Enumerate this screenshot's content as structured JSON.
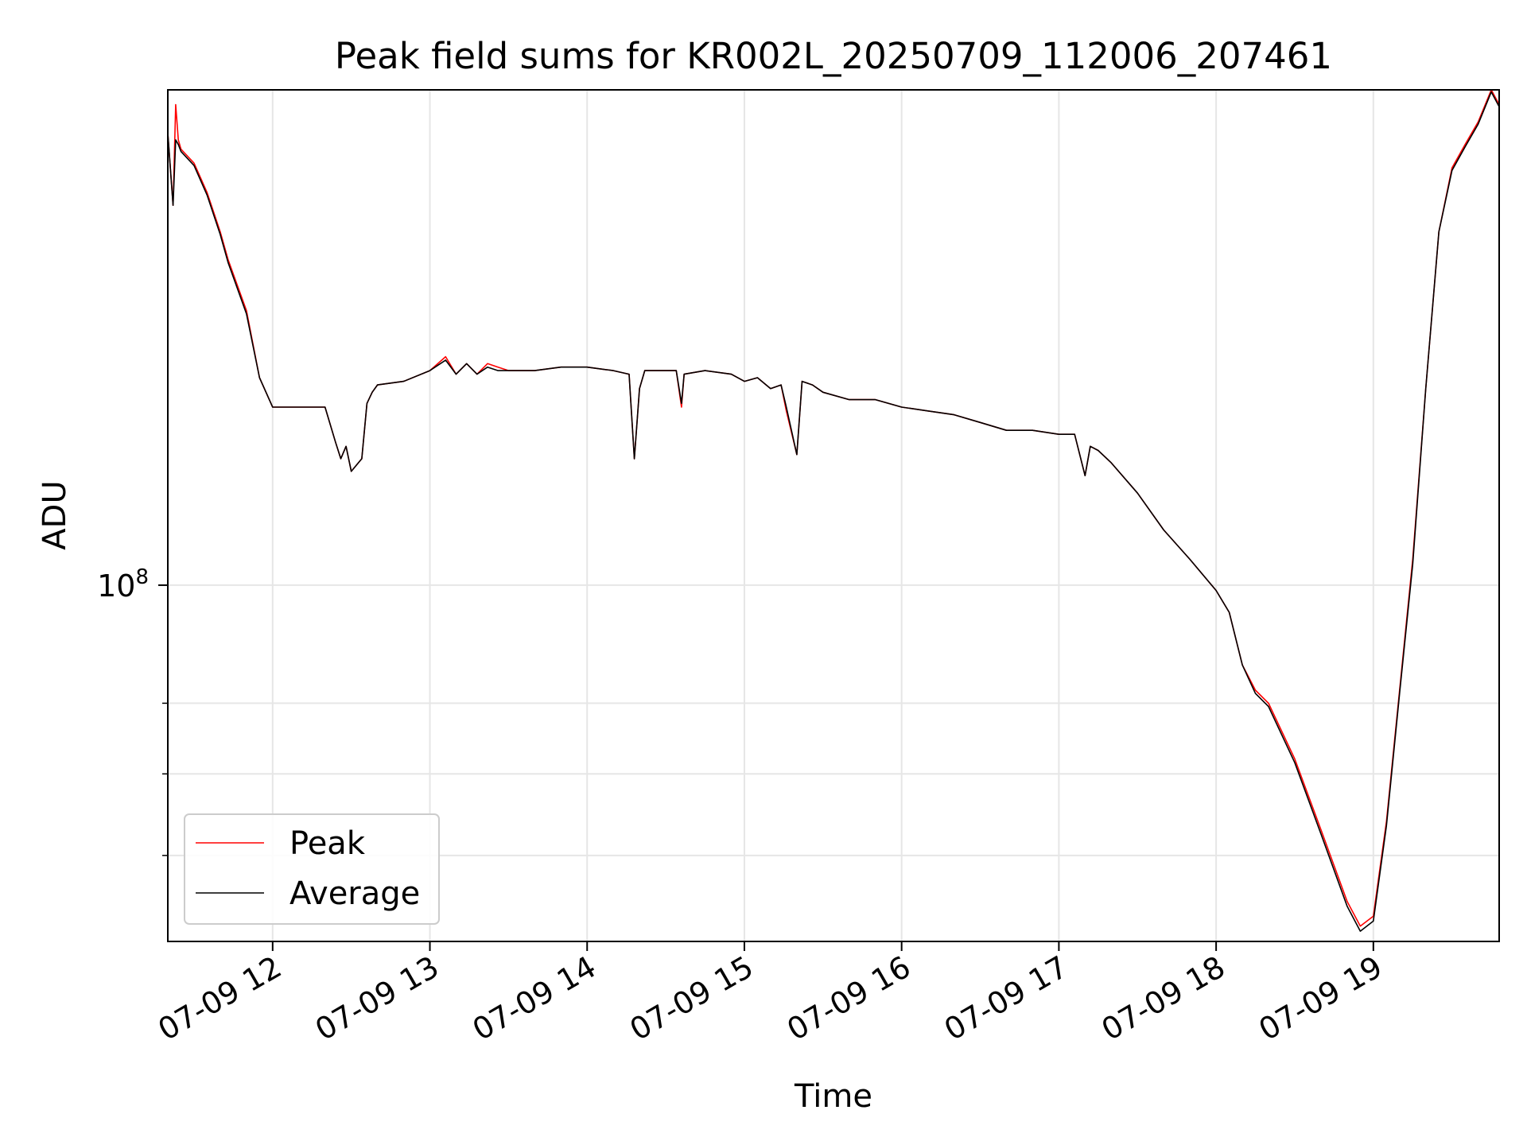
{
  "chart_data": {
    "type": "line",
    "title": "Peak field sums for KR002L_20250709_112006_207461",
    "xlabel": "Time",
    "ylabel": "ADU",
    "y_scale": "log",
    "grid": true,
    "legend_position": "lower-left",
    "xlim": [
      "2025-07-09 11:20",
      "2025-07-09 19:48"
    ],
    "ylim": [
      51000000,
      255000000
    ],
    "x_ticks": [
      {
        "value": "2025-07-09 12:00",
        "label": "07-09 12"
      },
      {
        "value": "2025-07-09 13:00",
        "label": "07-09 13"
      },
      {
        "value": "2025-07-09 14:00",
        "label": "07-09 14"
      },
      {
        "value": "2025-07-09 15:00",
        "label": "07-09 15"
      },
      {
        "value": "2025-07-09 16:00",
        "label": "07-09 16"
      },
      {
        "value": "2025-07-09 17:00",
        "label": "07-09 17"
      },
      {
        "value": "2025-07-09 18:00",
        "label": "07-09 18"
      },
      {
        "value": "2025-07-09 19:00",
        "label": "07-09 19"
      }
    ],
    "y_ticks": [
      {
        "value": 100000000,
        "base": "10",
        "exp": "8"
      }
    ],
    "y_minor_ticks": [
      60000000,
      70000000,
      80000000
    ],
    "series": [
      {
        "name": "Peak",
        "color": "#ff0000",
        "x": [
          "2025-07-09 11:20",
          "2025-07-09 11:22",
          "2025-07-09 11:23",
          "2025-07-09 11:24",
          "2025-07-09 11:25",
          "2025-07-09 11:30",
          "2025-07-09 11:35",
          "2025-07-09 11:40",
          "2025-07-09 11:43",
          "2025-07-09 11:50",
          "2025-07-09 11:55",
          "2025-07-09 12:00",
          "2025-07-09 12:10",
          "2025-07-09 12:20",
          "2025-07-09 12:24",
          "2025-07-09 12:26",
          "2025-07-09 12:28",
          "2025-07-09 12:30",
          "2025-07-09 12:34",
          "2025-07-09 12:36",
          "2025-07-09 12:38",
          "2025-07-09 12:40",
          "2025-07-09 12:50",
          "2025-07-09 13:00",
          "2025-07-09 13:06",
          "2025-07-09 13:10",
          "2025-07-09 13:14",
          "2025-07-09 13:18",
          "2025-07-09 13:22",
          "2025-07-09 13:26",
          "2025-07-09 13:30",
          "2025-07-09 13:40",
          "2025-07-09 13:50",
          "2025-07-09 14:00",
          "2025-07-09 14:10",
          "2025-07-09 14:16",
          "2025-07-09 14:18",
          "2025-07-09 14:20",
          "2025-07-09 14:22",
          "2025-07-09 14:24",
          "2025-07-09 14:34",
          "2025-07-09 14:36",
          "2025-07-09 14:37",
          "2025-07-09 14:45",
          "2025-07-09 14:55",
          "2025-07-09 15:00",
          "2025-07-09 15:05",
          "2025-07-09 15:10",
          "2025-07-09 15:14",
          "2025-07-09 15:16",
          "2025-07-09 15:20",
          "2025-07-09 15:22",
          "2025-07-09 15:26",
          "2025-07-09 15:30",
          "2025-07-09 15:40",
          "2025-07-09 15:50",
          "2025-07-09 16:00",
          "2025-07-09 16:10",
          "2025-07-09 16:20",
          "2025-07-09 16:30",
          "2025-07-09 16:40",
          "2025-07-09 16:50",
          "2025-07-09 17:00",
          "2025-07-09 17:06",
          "2025-07-09 17:10",
          "2025-07-09 17:12",
          "2025-07-09 17:15",
          "2025-07-09 17:20",
          "2025-07-09 17:30",
          "2025-07-09 17:40",
          "2025-07-09 17:50",
          "2025-07-09 18:00",
          "2025-07-09 18:05",
          "2025-07-09 18:10",
          "2025-07-09 18:15",
          "2025-07-09 18:20",
          "2025-07-09 18:30",
          "2025-07-09 18:40",
          "2025-07-09 18:50",
          "2025-07-09 18:55",
          "2025-07-09 19:00",
          "2025-07-09 19:05",
          "2025-07-09 19:10",
          "2025-07-09 19:15",
          "2025-07-09 19:20",
          "2025-07-09 19:25",
          "2025-07-09 19:30",
          "2025-07-09 19:35",
          "2025-07-09 19:40",
          "2025-07-09 19:45",
          "2025-07-09 19:48"
        ],
        "y": [
          235000000,
          205000000,
          248000000,
          232000000,
          228000000,
          222000000,
          210000000,
          195000000,
          185000000,
          168000000,
          148000000,
          140000000,
          140000000,
          140000000,
          131000000,
          127000000,
          130000000,
          124000000,
          127000000,
          141000000,
          144000000,
          146000000,
          147000000,
          150000000,
          154000000,
          149000000,
          152000000,
          149000000,
          152000000,
          151000000,
          150000000,
          150000000,
          151000000,
          151000000,
          150000000,
          149000000,
          127000000,
          145000000,
          150000000,
          150000000,
          150000000,
          140000000,
          149000000,
          150000000,
          149000000,
          147000000,
          148000000,
          145000000,
          146000000,
          139000000,
          128000000,
          147000000,
          146000000,
          144000000,
          142000000,
          142000000,
          140000000,
          139000000,
          138000000,
          136000000,
          134000000,
          134000000,
          133000000,
          133000000,
          123000000,
          130000000,
          129000000,
          126000000,
          119000000,
          111000000,
          105000000,
          99000000,
          95000000,
          86000000,
          82000000,
          80000000,
          72000000,
          63000000,
          55000000,
          52500000,
          53500000,
          64000000,
          82000000,
          105000000,
          145000000,
          195000000,
          220000000,
          230000000,
          240000000,
          255000000,
          248000000
        ]
      },
      {
        "name": "Average",
        "color": "#000000",
        "x": [
          "2025-07-09 11:20",
          "2025-07-09 11:22",
          "2025-07-09 11:23",
          "2025-07-09 11:24",
          "2025-07-09 11:25",
          "2025-07-09 11:30",
          "2025-07-09 11:35",
          "2025-07-09 11:40",
          "2025-07-09 11:43",
          "2025-07-09 11:50",
          "2025-07-09 11:55",
          "2025-07-09 12:00",
          "2025-07-09 12:10",
          "2025-07-09 12:20",
          "2025-07-09 12:24",
          "2025-07-09 12:26",
          "2025-07-09 12:28",
          "2025-07-09 12:30",
          "2025-07-09 12:34",
          "2025-07-09 12:36",
          "2025-07-09 12:38",
          "2025-07-09 12:40",
          "2025-07-09 12:50",
          "2025-07-09 13:00",
          "2025-07-09 13:06",
          "2025-07-09 13:10",
          "2025-07-09 13:14",
          "2025-07-09 13:18",
          "2025-07-09 13:22",
          "2025-07-09 13:26",
          "2025-07-09 13:30",
          "2025-07-09 13:40",
          "2025-07-09 13:50",
          "2025-07-09 14:00",
          "2025-07-09 14:10",
          "2025-07-09 14:16",
          "2025-07-09 14:18",
          "2025-07-09 14:20",
          "2025-07-09 14:22",
          "2025-07-09 14:24",
          "2025-07-09 14:34",
          "2025-07-09 14:36",
          "2025-07-09 14:37",
          "2025-07-09 14:45",
          "2025-07-09 14:55",
          "2025-07-09 15:00",
          "2025-07-09 15:05",
          "2025-07-09 15:10",
          "2025-07-09 15:14",
          "2025-07-09 15:16",
          "2025-07-09 15:20",
          "2025-07-09 15:22",
          "2025-07-09 15:26",
          "2025-07-09 15:30",
          "2025-07-09 15:40",
          "2025-07-09 15:50",
          "2025-07-09 16:00",
          "2025-07-09 16:10",
          "2025-07-09 16:20",
          "2025-07-09 16:30",
          "2025-07-09 16:40",
          "2025-07-09 16:50",
          "2025-07-09 17:00",
          "2025-07-09 17:06",
          "2025-07-09 17:10",
          "2025-07-09 17:12",
          "2025-07-09 17:15",
          "2025-07-09 17:20",
          "2025-07-09 17:30",
          "2025-07-09 17:40",
          "2025-07-09 17:50",
          "2025-07-09 18:00",
          "2025-07-09 18:05",
          "2025-07-09 18:10",
          "2025-07-09 18:15",
          "2025-07-09 18:20",
          "2025-07-09 18:30",
          "2025-07-09 18:40",
          "2025-07-09 18:50",
          "2025-07-09 18:55",
          "2025-07-09 19:00",
          "2025-07-09 19:05",
          "2025-07-09 19:10",
          "2025-07-09 19:15",
          "2025-07-09 19:20",
          "2025-07-09 19:25",
          "2025-07-09 19:30",
          "2025-07-09 19:35",
          "2025-07-09 19:40",
          "2025-07-09 19:45",
          "2025-07-09 19:48"
        ],
        "y": [
          235000000,
          205000000,
          232000000,
          230000000,
          227000000,
          221000000,
          209000000,
          194000000,
          184000000,
          167000000,
          148000000,
          140000000,
          140000000,
          140000000,
          131000000,
          127000000,
          130000000,
          124000000,
          127000000,
          141000000,
          144000000,
          146000000,
          147000000,
          150000000,
          153000000,
          149000000,
          152000000,
          149000000,
          151000000,
          150000000,
          150000000,
          150000000,
          151000000,
          151000000,
          150000000,
          149000000,
          127000000,
          145000000,
          150000000,
          150000000,
          150000000,
          141000000,
          149000000,
          150000000,
          149000000,
          147000000,
          148000000,
          145000000,
          146000000,
          140000000,
          128000000,
          147000000,
          146000000,
          144000000,
          142000000,
          142000000,
          140000000,
          139000000,
          138000000,
          136000000,
          134000000,
          134000000,
          133000000,
          133000000,
          123000000,
          130000000,
          129000000,
          126000000,
          119000000,
          111000000,
          105000000,
          99000000,
          95000000,
          86000000,
          81500000,
          79500000,
          71500000,
          62500000,
          54500000,
          52000000,
          53000000,
          63500000,
          81500000,
          104000000,
          145000000,
          195000000,
          219000000,
          229000000,
          239000000,
          254000000,
          247000000
        ]
      }
    ]
  }
}
